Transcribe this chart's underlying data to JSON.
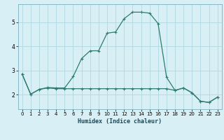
{
  "xlabel": "Humidex (Indice chaleur)",
  "background_color": "#d7eff5",
  "grid_color": "#b0d8e0",
  "line_color": "#2e7d6e",
  "xlim": [
    -0.5,
    23.5
  ],
  "ylim": [
    1.4,
    5.75
  ],
  "xticks": [
    0,
    1,
    2,
    3,
    4,
    5,
    6,
    7,
    8,
    9,
    10,
    11,
    12,
    13,
    14,
    15,
    16,
    17,
    18,
    19,
    20,
    21,
    22,
    23
  ],
  "yticks": [
    2,
    3,
    4,
    5
  ],
  "series1": [
    [
      0,
      2.85
    ],
    [
      1,
      2.02
    ],
    [
      2,
      2.22
    ],
    [
      3,
      2.3
    ],
    [
      4,
      2.28
    ],
    [
      5,
      2.28
    ],
    [
      6,
      2.75
    ],
    [
      7,
      3.5
    ],
    [
      8,
      3.82
    ],
    [
      9,
      3.82
    ],
    [
      10,
      4.55
    ],
    [
      11,
      4.6
    ],
    [
      12,
      5.15
    ],
    [
      13,
      5.42
    ],
    [
      14,
      5.42
    ],
    [
      15,
      5.38
    ],
    [
      16,
      4.95
    ],
    [
      17,
      2.72
    ],
    [
      18,
      2.18
    ],
    [
      19,
      2.28
    ],
    [
      20,
      2.08
    ],
    [
      21,
      1.73
    ],
    [
      22,
      1.68
    ],
    [
      23,
      1.9
    ]
  ],
  "series2": [
    [
      0,
      2.85
    ],
    [
      1,
      2.02
    ],
    [
      2,
      2.22
    ],
    [
      3,
      2.28
    ],
    [
      4,
      2.25
    ],
    [
      5,
      2.25
    ],
    [
      6,
      2.25
    ],
    [
      7,
      2.25
    ],
    [
      8,
      2.25
    ],
    [
      9,
      2.25
    ],
    [
      10,
      2.25
    ],
    [
      11,
      2.25
    ],
    [
      12,
      2.25
    ],
    [
      13,
      2.25
    ],
    [
      14,
      2.25
    ],
    [
      15,
      2.25
    ],
    [
      16,
      2.25
    ],
    [
      17,
      2.25
    ],
    [
      18,
      2.18
    ],
    [
      19,
      2.28
    ],
    [
      20,
      2.08
    ],
    [
      21,
      1.73
    ],
    [
      22,
      1.68
    ],
    [
      23,
      1.9
    ]
  ],
  "xlabel_fontsize": 6.0,
  "tick_fontsize_x": 5.0,
  "tick_fontsize_y": 5.5
}
